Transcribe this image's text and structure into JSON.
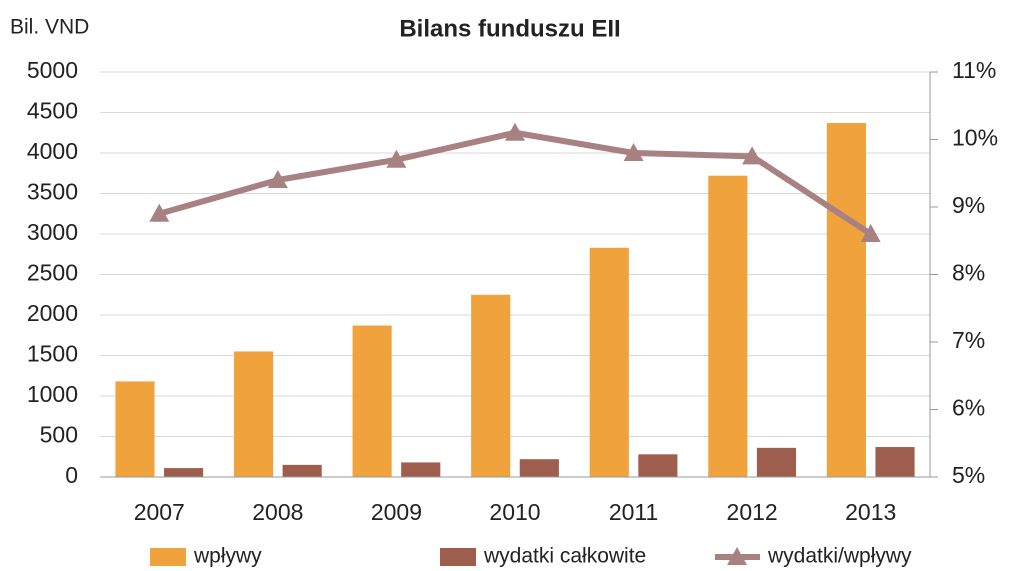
{
  "chart_data": {
    "type": "bar",
    "title": "Bilans funduszu EII",
    "ylabel": "Bil. VND",
    "categories": [
      "2007",
      "2008",
      "2009",
      "2010",
      "2011",
      "2012",
      "2013"
    ],
    "series": [
      {
        "name": "wpływy",
        "type": "bar",
        "color": "#f0a23c",
        "values": [
          1180,
          1550,
          1870,
          2250,
          2830,
          3720,
          4370
        ]
      },
      {
        "name": "wydatki całkowite",
        "type": "bar",
        "color": "#9e5e4d",
        "values": [
          110,
          150,
          180,
          220,
          280,
          360,
          370
        ]
      },
      {
        "name": "wydatki/wpływy",
        "type": "line",
        "axis": "y2",
        "color": "#a88282",
        "values": [
          8.9,
          9.4,
          9.7,
          10.1,
          9.8,
          9.75,
          8.6
        ]
      }
    ],
    "ylim": [
      0,
      5000
    ],
    "yticks": [
      0,
      500,
      1000,
      1500,
      2000,
      2500,
      3000,
      3500,
      4000,
      4500,
      5000
    ],
    "y2lim": [
      5,
      11
    ],
    "y2ticks": [
      {
        "value": 5,
        "label": "5%"
      },
      {
        "value": 6,
        "label": "6%"
      },
      {
        "value": 7,
        "label": "7%"
      },
      {
        "value": 8,
        "label": "8%"
      },
      {
        "value": 9,
        "label": "9%"
      },
      {
        "value": 10,
        "label": "10%"
      },
      {
        "value": 11,
        "label": "11%"
      }
    ],
    "grid": true,
    "legend": "bottom"
  }
}
